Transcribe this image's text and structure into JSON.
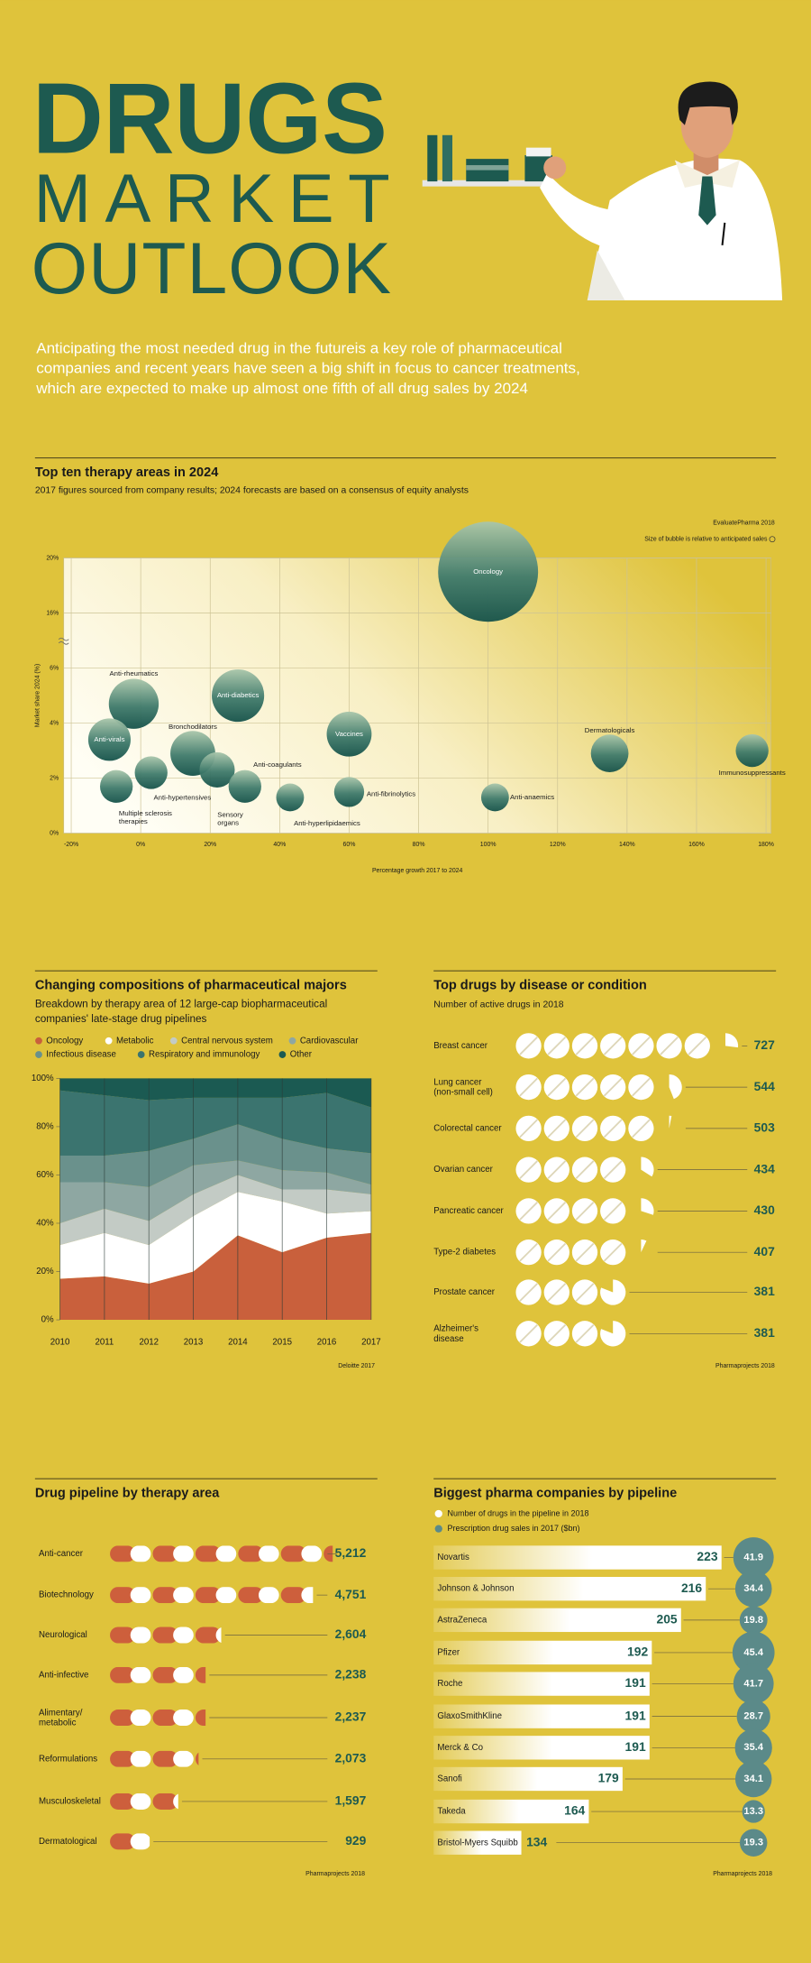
{
  "header": {
    "title": [
      "DRUGS",
      "MARKET",
      "OUTLOOK"
    ],
    "intro": [
      "Anticipating the most needed drug in the futureis a key role of pharmaceutical",
      "companies and recent years have seen a big shift in focus to cancer treatments,",
      "which are expected to make up almost one fifth of all drug sales by 2024"
    ]
  },
  "chart_data": [
    {
      "type": "bubble",
      "title": "Top ten therapy areas in 2024",
      "subtitle": "2017 figures sourced from company results; 2024 forecasts are based on a consensus of equity analysts",
      "source": "EvaluatePharma 2018",
      "note": "Size of bubble is relative to anticipated sales",
      "xlabel": "Percentage growth 2017 to 2024",
      "ylabel": "Market share 2024 (%)",
      "categories": [
        "Oncology",
        "Anti-rheumatics",
        "Anti-diabetics",
        "Anti-virals",
        "Bronchodilators",
        "Vaccines",
        "Dermatologicals",
        "Immunosuppressants",
        "Anti-coagulants",
        "Anti-hypertensives",
        "Multiple sclerosis therapies",
        "Sensory organs",
        "Anti-hyperlipidaemics",
        "Anti-fibrinolytics",
        "Anti-anaemics"
      ],
      "x": [
        100,
        -2,
        28,
        -9,
        15,
        60,
        135,
        176,
        22,
        3,
        -7,
        30,
        43,
        60,
        102
      ],
      "values": [
        19,
        4.7,
        5.0,
        3.4,
        2.9,
        3.6,
        2.9,
        3.0,
        2.3,
        2.2,
        1.7,
        1.7,
        1.3,
        1.5,
        1.3
      ],
      "sizes": [
        233,
        58,
        64,
        42,
        47,
        47,
        33,
        25,
        29,
        25,
        25,
        25,
        18,
        21,
        18
      ],
      "xlim": [
        -20,
        180
      ],
      "xticks": [
        {
          "value": -20,
          "label": "-20%"
        },
        {
          "value": 0,
          "label": "0%"
        },
        {
          "value": 20,
          "label": "20%"
        },
        {
          "value": 40,
          "label": "40%"
        },
        {
          "value": 60,
          "label": "60%"
        },
        {
          "value": 80,
          "label": "80%"
        },
        {
          "value": 100,
          "label": "100%"
        },
        {
          "value": 120,
          "label": "120%"
        },
        {
          "value": 140,
          "label": "140%"
        },
        {
          "value": 160,
          "label": "160%"
        },
        {
          "value": 180,
          "label": "180%"
        }
      ],
      "ylim": [
        0,
        20
      ],
      "yticks": [
        {
          "value": 0,
          "label": "0%"
        },
        {
          "value": 2,
          "label": "2%"
        },
        {
          "value": 4,
          "label": "4%"
        },
        {
          "value": 6,
          "label": "6%"
        },
        {
          "value": 16,
          "label": "16%"
        },
        {
          "value": 20,
          "label": "20%"
        }
      ],
      "y_axis_break": true,
      "grid": true,
      "color": "#1d5a50"
    },
    {
      "type": "area",
      "stacked": true,
      "title": "Changing compositions of pharmaceutical majors",
      "subtitle": "Breakdown by therapy area of 12 large-cap biopharmaceutical companies' late-stage drug pipelines",
      "source": "Deloitte 2017",
      "categories": [
        "2010",
        "2011",
        "2012",
        "2013",
        "2014",
        "2015",
        "2016",
        "2017"
      ],
      "series": [
        {
          "name": "Oncology",
          "color": "#c9603c",
          "values": [
            17,
            18,
            15,
            20,
            35,
            28,
            34,
            36
          ]
        },
        {
          "name": "Metabolic",
          "color": "#ffffff",
          "values": [
            14,
            18,
            16,
            23,
            18,
            21,
            10,
            9
          ]
        },
        {
          "name": "Central nervous system",
          "color": "#c3cbc5",
          "values": [
            9,
            10,
            10,
            9,
            7,
            5,
            10,
            7
          ]
        },
        {
          "name": "Cardiovascular",
          "color": "#8ea7a2",
          "values": [
            17,
            11,
            14,
            12,
            6,
            8,
            7,
            4
          ]
        },
        {
          "name": "Infectious disease",
          "color": "#6a918c",
          "values": [
            11,
            11,
            15,
            11,
            15,
            13,
            10,
            13
          ]
        },
        {
          "name": "Respiratory and immunology",
          "color": "#3b746f",
          "values": [
            27,
            25,
            21,
            17,
            11,
            17,
            23,
            19
          ]
        },
        {
          "name": "Other",
          "color": "#1b5a52",
          "values": [
            5,
            7,
            9,
            8,
            8,
            8,
            6,
            12
          ]
        }
      ],
      "ylim": [
        0,
        100
      ],
      "yticks": [
        {
          "value": 0,
          "label": "0%"
        },
        {
          "value": 20,
          "label": "20%"
        },
        {
          "value": 40,
          "label": "40%"
        },
        {
          "value": 60,
          "label": "60%"
        },
        {
          "value": 80,
          "label": "80%"
        },
        {
          "value": 100,
          "label": "100%"
        }
      ]
    },
    {
      "type": "pictogram",
      "icon": "circle",
      "title": "Top drugs by disease or condition",
      "subtitle": "Number of active drugs in 2018",
      "source": "Pharmaprojects 2018",
      "categories": [
        "Breast cancer",
        "Lung cancer (non-small cell)",
        "Colorectal cancer",
        "Ovarian cancer",
        "Pancreatic cancer",
        "Type-2 diabetes",
        "Prostate cancer",
        "Alzheimer's disease"
      ],
      "values": [
        727,
        544,
        503,
        434,
        430,
        407,
        381,
        381
      ],
      "color": "#1d5a50"
    },
    {
      "type": "pictogram",
      "icon": "capsule",
      "title": "Drug pipeline by therapy area",
      "source": "Pharmaprojects 2018",
      "categories": [
        "Anti-cancer",
        "Biotechnology",
        "Neurological",
        "Anti-infective",
        "Alimentary/metabolic",
        "Reformulations",
        "Musculoskeletal",
        "Dermatological"
      ],
      "values": [
        5212,
        4751,
        2604,
        2238,
        2237,
        2073,
        1597,
        929
      ],
      "value_labels": [
        "5,212",
        "4,751",
        "2,604",
        "2,238",
        "2,237",
        "2,073",
        "1,597",
        "929"
      ],
      "color": "#cd5f3c"
    },
    {
      "type": "bar",
      "title": "Biggest pharma companies by pipeline",
      "source": "Pharmaprojects 2018",
      "categories": [
        "Novartis",
        "Johnson & Johnson",
        "AstraZeneca",
        "Pfizer",
        "Roche",
        "GlaxoSmithKline",
        "Merck & Co",
        "Sanofi",
        "Takeda",
        "Bristol-Myers Squibb"
      ],
      "series": [
        {
          "name": "Number of drugs in the pipeline in 2018",
          "color": "#ffffff",
          "values": [
            223,
            216,
            205,
            192,
            191,
            191,
            191,
            179,
            164,
            134
          ]
        },
        {
          "name": "Prescription drug sales in 2017 ($bn)",
          "color": "#5b8a89",
          "mark": "circle",
          "values": [
            41.9,
            34.4,
            19.8,
            45.4,
            41.7,
            28.7,
            35.4,
            34.1,
            13.3,
            19.3
          ]
        }
      ],
      "xlim": [
        95,
        230
      ]
    }
  ]
}
